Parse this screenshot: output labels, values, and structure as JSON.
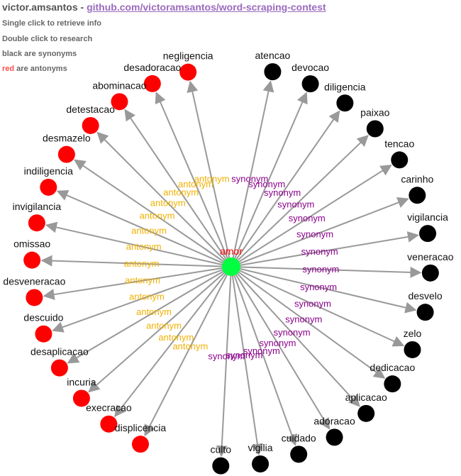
{
  "header": {
    "author": "victor.amsantos",
    "separator": " - ",
    "repo_link": "github.com/victoramsantos/word-scraping-contest"
  },
  "hints": {
    "single_click": "Single click to retrieve info",
    "double_click": "Double click to research",
    "black_synonyms": "black are synonyms",
    "red_word": "red",
    "red_antonyms_rest": " are antonyms"
  },
  "colors": {
    "synonym_node": "#000000",
    "antonym_node": "#ff0000",
    "center_node": "#00ff40",
    "synonym_label": "#8b008b",
    "antonym_label": "#f0b000",
    "edge": "#999999"
  },
  "graph": {
    "center": {
      "word": "amor"
    },
    "antonym_edge_label": "antonym",
    "synonym_edge_label": "synonym",
    "antonyms": [
      "negligencia",
      "desadoracao",
      "abominacao",
      "detestacao",
      "desmazelo",
      "indiligencia",
      "invigilancia",
      "omissao",
      "desveneracao",
      "descuido",
      "desaplicacao",
      "incuria",
      "execracao",
      "displicencia"
    ],
    "synonyms": [
      "atencao",
      "devocao",
      "diligencia",
      "paixao",
      "tencao",
      "carinho",
      "vigilancia",
      "veneracao",
      "desvelo",
      "zelo",
      "dedicacao",
      "aplicacao",
      "adoracao",
      "cuidado",
      "vigilia",
      "culto"
    ]
  }
}
